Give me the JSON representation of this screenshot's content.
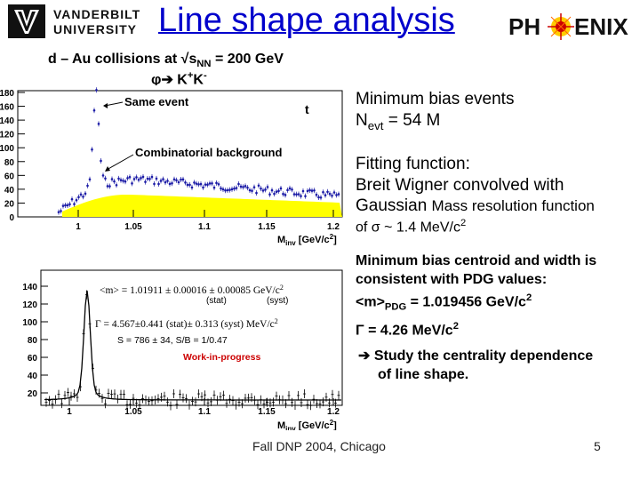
{
  "header": {
    "university_line1": "VANDERBILT",
    "university_line2": "UNIVERSITY",
    "title": "Line  shape analysis",
    "phenix_logo_text": "PH ENIX"
  },
  "subtitle": {
    "collision_prefix": "d – Au collisions at √s",
    "collision_sub": "NN",
    "collision_suffix": " = 200 GeV",
    "decay_phi": "φ",
    "decay_arrow": "➔",
    "decay_k1": " K",
    "decay_k1_sup": "+",
    "decay_k2": "K",
    "decay_k2_sup": "-"
  },
  "plot1": {
    "label_same": "Same event",
    "label_t": "t",
    "label_comb": "Combinatorial background",
    "xaxis_label": "M",
    "xaxis_sub": "inv",
    "xaxis_unit": " [GeV/c",
    "xaxis_unit_sup": "2",
    "xaxis_unit_end": "]",
    "yticks": [
      "180",
      "160",
      "140",
      "120",
      "100",
      "80",
      "60",
      "40",
      "20",
      "0"
    ],
    "xticks": [
      "1",
      "1.05",
      "1.1",
      "1.15",
      "1.2"
    ]
  },
  "plot2": {
    "mass_line": "<m> = 1.01911 ± 0.00016 ±  0.00085 GeV/c",
    "mass_sup": "2",
    "stat_label": "(stat)",
    "syst_label": "(syst)",
    "gamma_line": "Γ = 4.567±0.441 (stat)± 0.313 (syst) MeV/c",
    "gamma_sup": "2",
    "s_line": "S = 786 ±  34, S/B = 1/0.47",
    "wip": "Work-in-progress",
    "yticks": [
      "140",
      "120",
      "100",
      "80",
      "60",
      "40",
      "20"
    ],
    "xticks": [
      "1",
      "1.05",
      "1.1",
      "1.15",
      "1.2"
    ],
    "xaxis_label": "M",
    "xaxis_sub": "inv",
    "xaxis_unit": " [GeV/c",
    "xaxis_unit_sup": "2",
    "xaxis_unit_end": "]"
  },
  "right_text": {
    "min_bias_1": "Minimum bias events",
    "nevt_label": "N",
    "nevt_sub": "evt",
    "nevt_value": " = 54 M",
    "fitting_1": "Fitting function:",
    "fitting_2": "Breit Wigner convolved with",
    "fitting_3a": "Gaussian ",
    "fitting_3b": "Mass resolution function",
    "fitting_4a": "of  ",
    "fitting_4_sigma": "σ",
    "fitting_4b": " ~ 1.4 MeV/c",
    "fitting_4_sup": "2",
    "centroid_1": "Minimum bias centroid and width is",
    "centroid_2": "consistent with PDG values:",
    "centroid_3a": "<m>",
    "centroid_3_sub": "PDG",
    "centroid_3b": " = 1.019456 GeV/c",
    "centroid_3_sup": "2",
    "centroid_4a": "Γ",
    "centroid_4b": "  =  4.26 MeV/c",
    "centroid_4_sup": "2",
    "study_arrow": "➔",
    "study_1": " Study the centrality dependence",
    "study_2": "of line shape."
  },
  "footer": {
    "text": "Fall DNP 2004, Chicago",
    "page": "5"
  },
  "colors": {
    "title": "#0000cc",
    "data_markers": "#1a1aa6",
    "background_fill": "#ffff00",
    "phenix_red": "#cc0000"
  }
}
